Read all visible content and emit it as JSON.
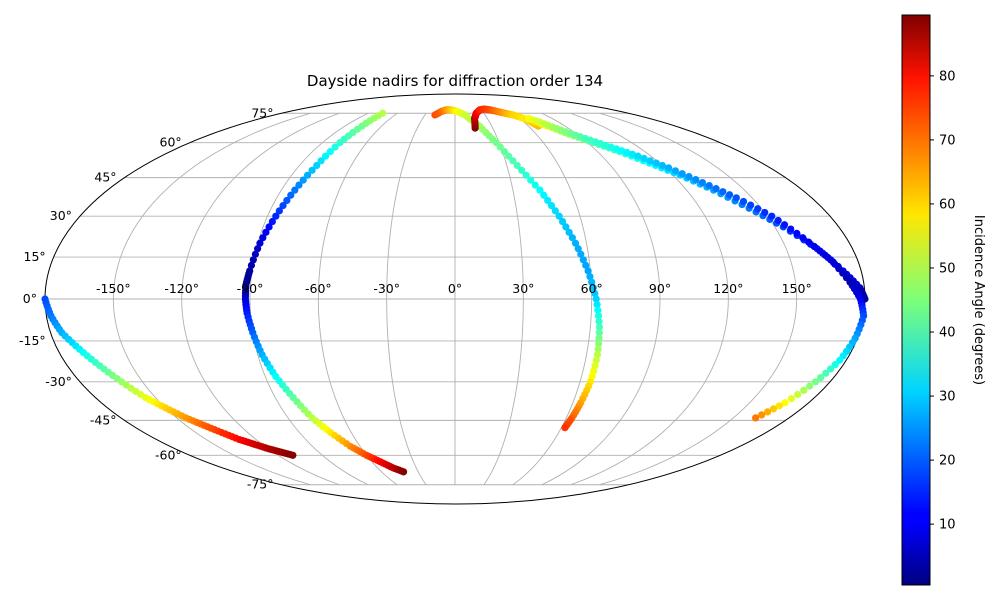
{
  "chart_data": {
    "type": "scatter",
    "projection": "mollweide",
    "title": "Dayside nadirs for diffraction order 134",
    "grid": true,
    "longitude_ticks": [
      "-150°",
      "-120°",
      "-90°",
      "-60°",
      "-30°",
      "0°",
      "30°",
      "60°",
      "90°",
      "120°",
      "150°"
    ],
    "longitude_tick_values": [
      -150,
      -120,
      -90,
      -60,
      -30,
      0,
      30,
      60,
      90,
      120,
      150
    ],
    "latitude_ticks": [
      "75°",
      "60°",
      "45°",
      "30°",
      "15°",
      "0°",
      "-15°",
      "-30°",
      "-45°",
      "-60°",
      "-75°"
    ],
    "latitude_tick_values": [
      75,
      60,
      45,
      30,
      15,
      0,
      -15,
      -30,
      -45,
      -60,
      -75
    ],
    "colorbar": {
      "label": "Incidence Angle (degrees)",
      "range": [
        0.5,
        89.5
      ],
      "colormap": "jet",
      "ticks": [
        "10",
        "20",
        "30",
        "40",
        "50",
        "60",
        "70",
        "80"
      ],
      "tick_values": [
        10,
        20,
        30,
        40,
        50,
        60,
        70,
        80
      ]
    },
    "series": [
      {
        "lon": [
          -180,
          -178,
          -175,
          -170,
          -165,
          -160,
          -155,
          -150,
          -145,
          -140,
          -135,
          -130,
          -125,
          -120,
          -115,
          -110
        ],
        "lat": [
          0,
          -6,
          -12,
          -18,
          -24,
          -30,
          -36,
          -40,
          -44,
          -47,
          -50,
          -53,
          -55,
          -57,
          -58.5,
          -60
        ],
        "incidence": [
          18,
          22,
          27,
          33,
          40,
          47,
          54,
          60,
          65,
          70,
          74,
          78,
          82,
          85,
          87,
          89
        ]
      },
      {
        "lon": [
          -75,
          -76,
          -78,
          -80,
          -83,
          -86,
          -89,
          -91,
          -92,
          -92,
          -91.5,
          -90,
          -88,
          -85,
          -81,
          -77,
          -72,
          -66,
          -60,
          -54,
          -48,
          -42
        ],
        "lat": [
          75,
          68,
          60,
          50,
          40,
          30,
          20,
          10,
          5,
          0,
          -5,
          -12,
          -20,
          -28,
          -36,
          -44,
          -50,
          -56,
          -60,
          -63,
          -66,
          -68
        ],
        "incidence": [
          50,
          44,
          38,
          30,
          22,
          15,
          8,
          3,
          2,
          8,
          14,
          20,
          27,
          34,
          42,
          50,
          58,
          66,
          72,
          78,
          84,
          89
        ]
      },
      {
        "lon": [
          -20,
          -15,
          -10,
          -5,
          0,
          5,
          10,
          20,
          28,
          36,
          44,
          50,
          55,
          59,
          62,
          64,
          65,
          65,
          64,
          63,
          62
        ],
        "lat": [
          74,
          76,
          77,
          77,
          76.5,
          75.5,
          74,
          68,
          60,
          50,
          40,
          30,
          20,
          10,
          0,
          -10,
          -20,
          -30,
          -38,
          -44,
          -48
        ],
        "incidence": [
          72,
          70,
          66,
          62,
          58,
          55,
          52,
          48,
          44,
          40,
          34,
          30,
          27,
          26,
          30,
          40,
          50,
          58,
          64,
          70,
          74
        ]
      },
      {
        "lon": [
          16,
          18,
          22,
          28,
          34,
          40,
          46,
          52,
          58,
          64,
          68
        ],
        "lat": [
          67,
          72,
          75,
          77,
          77.5,
          77,
          76,
          75,
          74,
          72,
          68
        ],
        "incidence": [
          89,
          85,
          80,
          76,
          74,
          72,
          68,
          64,
          60,
          58,
          62
        ]
      },
      {
        "lon": [
          70,
          76,
          84,
          94,
          104,
          114,
          124,
          134,
          144,
          154,
          164,
          172,
          178,
          180
        ],
        "lat": [
          70,
          68,
          64,
          60,
          56,
          51,
          46,
          40,
          33,
          26,
          18,
          10,
          4,
          0
        ],
        "incidence": [
          60,
          55,
          48,
          42,
          38,
          34,
          30,
          26,
          22,
          18,
          14,
          10,
          6,
          3
        ]
      },
      {
        "lon": [
          68,
          74,
          82,
          92,
          102,
          112,
          122,
          132,
          142,
          152,
          160,
          168,
          174,
          178,
          180,
          179,
          177,
          173,
          168,
          162
        ],
        "lat": [
          72,
          70,
          66,
          62,
          58,
          54,
          49,
          43,
          37,
          30,
          22,
          14,
          6,
          0,
          -6,
          -14,
          -22,
          -30,
          -38,
          -44
        ],
        "incidence": [
          56,
          52,
          46,
          40,
          36,
          31,
          27,
          23,
          19,
          15,
          11,
          8,
          5,
          10,
          18,
          26,
          34,
          44,
          56,
          68
        ]
      }
    ]
  }
}
